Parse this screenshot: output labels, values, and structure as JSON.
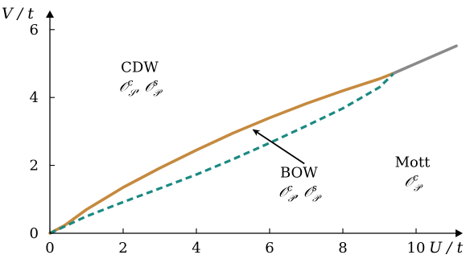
{
  "chart_data": {
    "type": "line",
    "xlabel": "U / t",
    "ylabel": "V / t",
    "xlim": [
      0,
      11.5
    ],
    "ylim": [
      0,
      6.4
    ],
    "xticks": [
      0,
      2,
      4,
      6,
      8,
      10
    ],
    "yticks": [
      0,
      2,
      4,
      6
    ],
    "grid": false,
    "series": [
      {
        "style": "solid",
        "color": "#c58a3f",
        "x": [
          0,
          0.4,
          1,
          2,
          3,
          4,
          5,
          6,
          7,
          8,
          9,
          9.4
        ],
        "y": [
          0,
          0.23,
          0.7,
          1.35,
          1.92,
          2.45,
          2.95,
          3.4,
          3.82,
          4.2,
          4.55,
          4.72
        ]
      },
      {
        "style": "dashed",
        "color": "#1b8a82",
        "x": [
          0,
          0.5,
          1,
          2,
          3,
          4,
          5,
          6,
          7,
          8,
          9,
          9.4
        ],
        "y": [
          0,
          0.25,
          0.5,
          0.92,
          1.32,
          1.73,
          2.18,
          2.66,
          3.16,
          3.68,
          4.3,
          4.72
        ]
      },
      {
        "style": "solid",
        "color": "#8a8a8a",
        "x": [
          9.4,
          11.1
        ],
        "y": [
          4.72,
          5.52
        ]
      }
    ],
    "annotations": [
      {
        "id": "cdw",
        "label": "CDW",
        "ops": [
          "𝒪",
          "c",
          "𝒮",
          ", 𝒪",
          "s",
          "𝒫"
        ],
        "x": 2.45,
        "y": 4.75
      },
      {
        "id": "bow",
        "label": "BOW",
        "ops": [
          "𝒪",
          "c",
          "𝒫",
          ", 𝒪",
          "s",
          "𝒫"
        ],
        "x": 6.8,
        "y": 1.65
      },
      {
        "id": "mott",
        "label": "Mott",
        "ops": [
          "𝒪",
          "c",
          "𝒫"
        ],
        "x": 9.9,
        "y": 1.95
      }
    ],
    "arrow": {
      "from": [
        6.95,
        2.05
      ],
      "to": [
        5.55,
        3.05
      ]
    }
  }
}
